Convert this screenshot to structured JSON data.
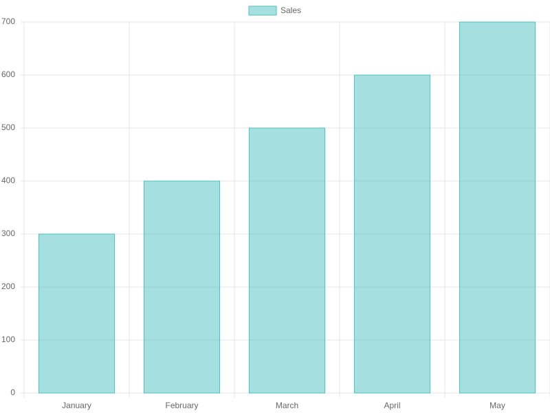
{
  "chart_data": {
    "type": "bar",
    "categories": [
      "January",
      "February",
      "March",
      "April",
      "May"
    ],
    "series": [
      {
        "name": "Sales",
        "color": "#4bc0c0",
        "values": [
          300,
          400,
          500,
          600,
          700
        ]
      }
    ],
    "ylim": [
      0,
      700
    ],
    "yticks": [
      0,
      100,
      200,
      300,
      400,
      500,
      600,
      700
    ],
    "grid": true,
    "legend": "top"
  }
}
